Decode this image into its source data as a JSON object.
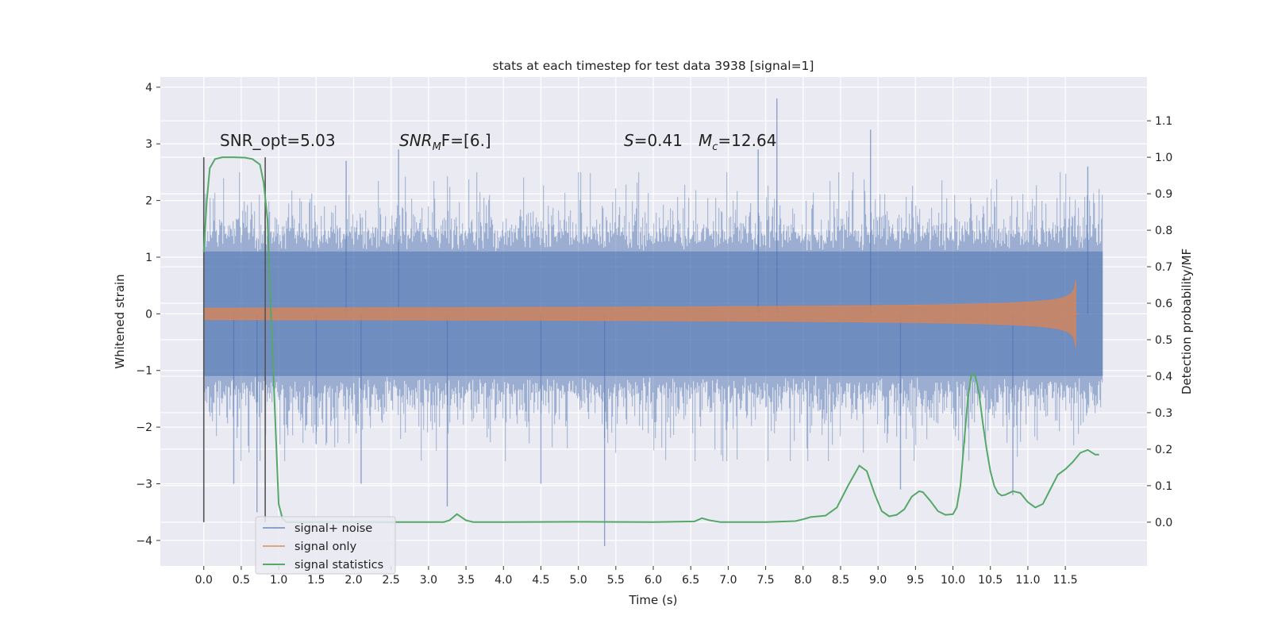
{
  "chart_data": {
    "type": "line",
    "title": "stats at each timestep for test data 3938 [signal=1]",
    "xlabel": "Time (s)",
    "ylabel": "Whitened strain",
    "y2label": "Detection probability/MF",
    "xlim": [
      -0.58,
      12.59
    ],
    "ylim": [
      -4.45,
      4.18
    ],
    "y2lim": [
      -0.12,
      1.22
    ],
    "x_ticks": [
      0.0,
      0.5,
      1.0,
      1.5,
      2.0,
      2.5,
      3.0,
      3.5,
      4.0,
      4.5,
      5.0,
      5.5,
      6.0,
      6.5,
      7.0,
      7.5,
      8.0,
      8.5,
      9.0,
      9.5,
      10.0,
      10.5,
      11.0,
      11.5
    ],
    "x_tick_labels": [
      "0.0",
      "0.5",
      "1.0",
      "1.5",
      "2.0",
      "2.5",
      "3.0",
      "3.5",
      "4.0",
      "4.5",
      "5.0",
      "5.5",
      "6.0",
      "6.5",
      "7.0",
      "7.5",
      "8.0",
      "8.5",
      "9.0",
      "9.5",
      "10.0",
      "10.5",
      "11.0",
      "11.5"
    ],
    "y_ticks": [
      -4,
      -3,
      -2,
      -1,
      0,
      1,
      2,
      3,
      4
    ],
    "y_tick_labels": [
      "−4",
      "−3",
      "−2",
      "−1",
      "0",
      "1",
      "2",
      "3",
      "4"
    ],
    "y2_ticks": [
      0.0,
      0.1,
      0.2,
      0.3,
      0.4,
      0.5,
      0.6,
      0.7,
      0.8,
      0.9,
      1.0,
      1.1
    ],
    "y2_tick_labels": [
      "0.0",
      "0.1",
      "0.2",
      "0.3",
      "0.4",
      "0.5",
      "0.6",
      "0.7",
      "0.8",
      "0.9",
      "1.0",
      "1.1"
    ],
    "grid": true,
    "legend_position": "bottom-left",
    "series": [
      {
        "name": "signal+ noise",
        "axis": "left",
        "color": "#4c72b0",
        "kind": "noise",
        "x_range": [
          0.0,
          12.0
        ],
        "spikes": [
          {
            "x": 0.71,
            "y": -3.5
          },
          {
            "x": 0.4,
            "y": -3.0
          },
          {
            "x": 1.5,
            "y": -2.3
          },
          {
            "x": 2.1,
            "y": -3.0
          },
          {
            "x": 2.6,
            "y": 2.9
          },
          {
            "x": 3.25,
            "y": -3.4
          },
          {
            "x": 5.35,
            "y": -4.1
          },
          {
            "x": 7.65,
            "y": 3.8
          },
          {
            "x": 7.4,
            "y": 2.9
          },
          {
            "x": 8.9,
            "y": 3.25
          },
          {
            "x": 9.3,
            "y": -3.1
          },
          {
            "x": 10.8,
            "y": -3.2
          },
          {
            "x": 11.8,
            "y": 2.6
          },
          {
            "x": 1.9,
            "y": 2.7
          },
          {
            "x": 4.5,
            "y": -3.0
          }
        ]
      },
      {
        "name": "signal only",
        "axis": "left",
        "color": "#dd8452",
        "kind": "chirp",
        "x_range": [
          0.0,
          11.68
        ],
        "peak_time": 11.65,
        "peak_amplitude": 0.8
      },
      {
        "name": "signal statistics",
        "axis": "right",
        "color": "#55a868",
        "x": [
          0.0,
          0.04,
          0.08,
          0.15,
          0.25,
          0.4,
          0.55,
          0.65,
          0.75,
          0.8,
          0.85,
          0.9,
          0.95,
          1.0,
          1.05,
          1.1,
          1.5,
          2.5,
          3.2,
          3.28,
          3.38,
          3.5,
          3.6,
          4.0,
          5.0,
          6.0,
          6.55,
          6.65,
          6.75,
          6.9,
          7.5,
          7.9,
          8.0,
          8.1,
          8.3,
          8.45,
          8.6,
          8.75,
          8.85,
          8.95,
          9.05,
          9.15,
          9.25,
          9.35,
          9.45,
          9.55,
          9.6,
          9.7,
          9.8,
          9.9,
          10.0,
          10.05,
          10.1,
          10.15,
          10.2,
          10.25,
          10.3,
          10.35,
          10.4,
          10.45,
          10.5,
          10.55,
          10.6,
          10.65,
          10.7,
          10.8,
          10.9,
          11.0,
          11.1,
          11.2,
          11.3,
          11.4,
          11.5,
          11.6,
          11.7,
          11.8,
          11.9,
          11.95
        ],
        "y": [
          0.74,
          0.88,
          0.97,
          0.995,
          1.0,
          1.0,
          0.999,
          0.995,
          0.98,
          0.93,
          0.83,
          0.55,
          0.3,
          0.05,
          0.01,
          0.0,
          0.0,
          0.0,
          0.0,
          0.005,
          0.022,
          0.005,
          0.0,
          0.0,
          0.001,
          0.0,
          0.002,
          0.011,
          0.005,
          0.0,
          0.0,
          0.003,
          0.008,
          0.014,
          0.018,
          0.04,
          0.1,
          0.155,
          0.14,
          0.08,
          0.03,
          0.016,
          0.02,
          0.035,
          0.07,
          0.085,
          0.082,
          0.058,
          0.03,
          0.02,
          0.022,
          0.04,
          0.1,
          0.22,
          0.34,
          0.408,
          0.4,
          0.35,
          0.27,
          0.2,
          0.14,
          0.1,
          0.08,
          0.073,
          0.075,
          0.085,
          0.08,
          0.055,
          0.04,
          0.05,
          0.09,
          0.13,
          0.145,
          0.165,
          0.19,
          0.198,
          0.185,
          0.185
        ]
      }
    ],
    "vlines": [
      0.0,
      0.82
    ],
    "annotations": {
      "snr_opt": "SNR_opt=5.03",
      "snr_mf": {
        "base": "SNR",
        "sub": "M",
        "rest": "F=[6.]"
      },
      "s_stat": {
        "base": "S",
        "rest": "=0.41"
      },
      "mc": {
        "base": "M",
        "sub": "c",
        "rest": "=12.64"
      }
    }
  },
  "colors": {
    "axes_bg": "#eaeaf2",
    "grid": "#ffffff",
    "page_bg": "#ffffff"
  }
}
